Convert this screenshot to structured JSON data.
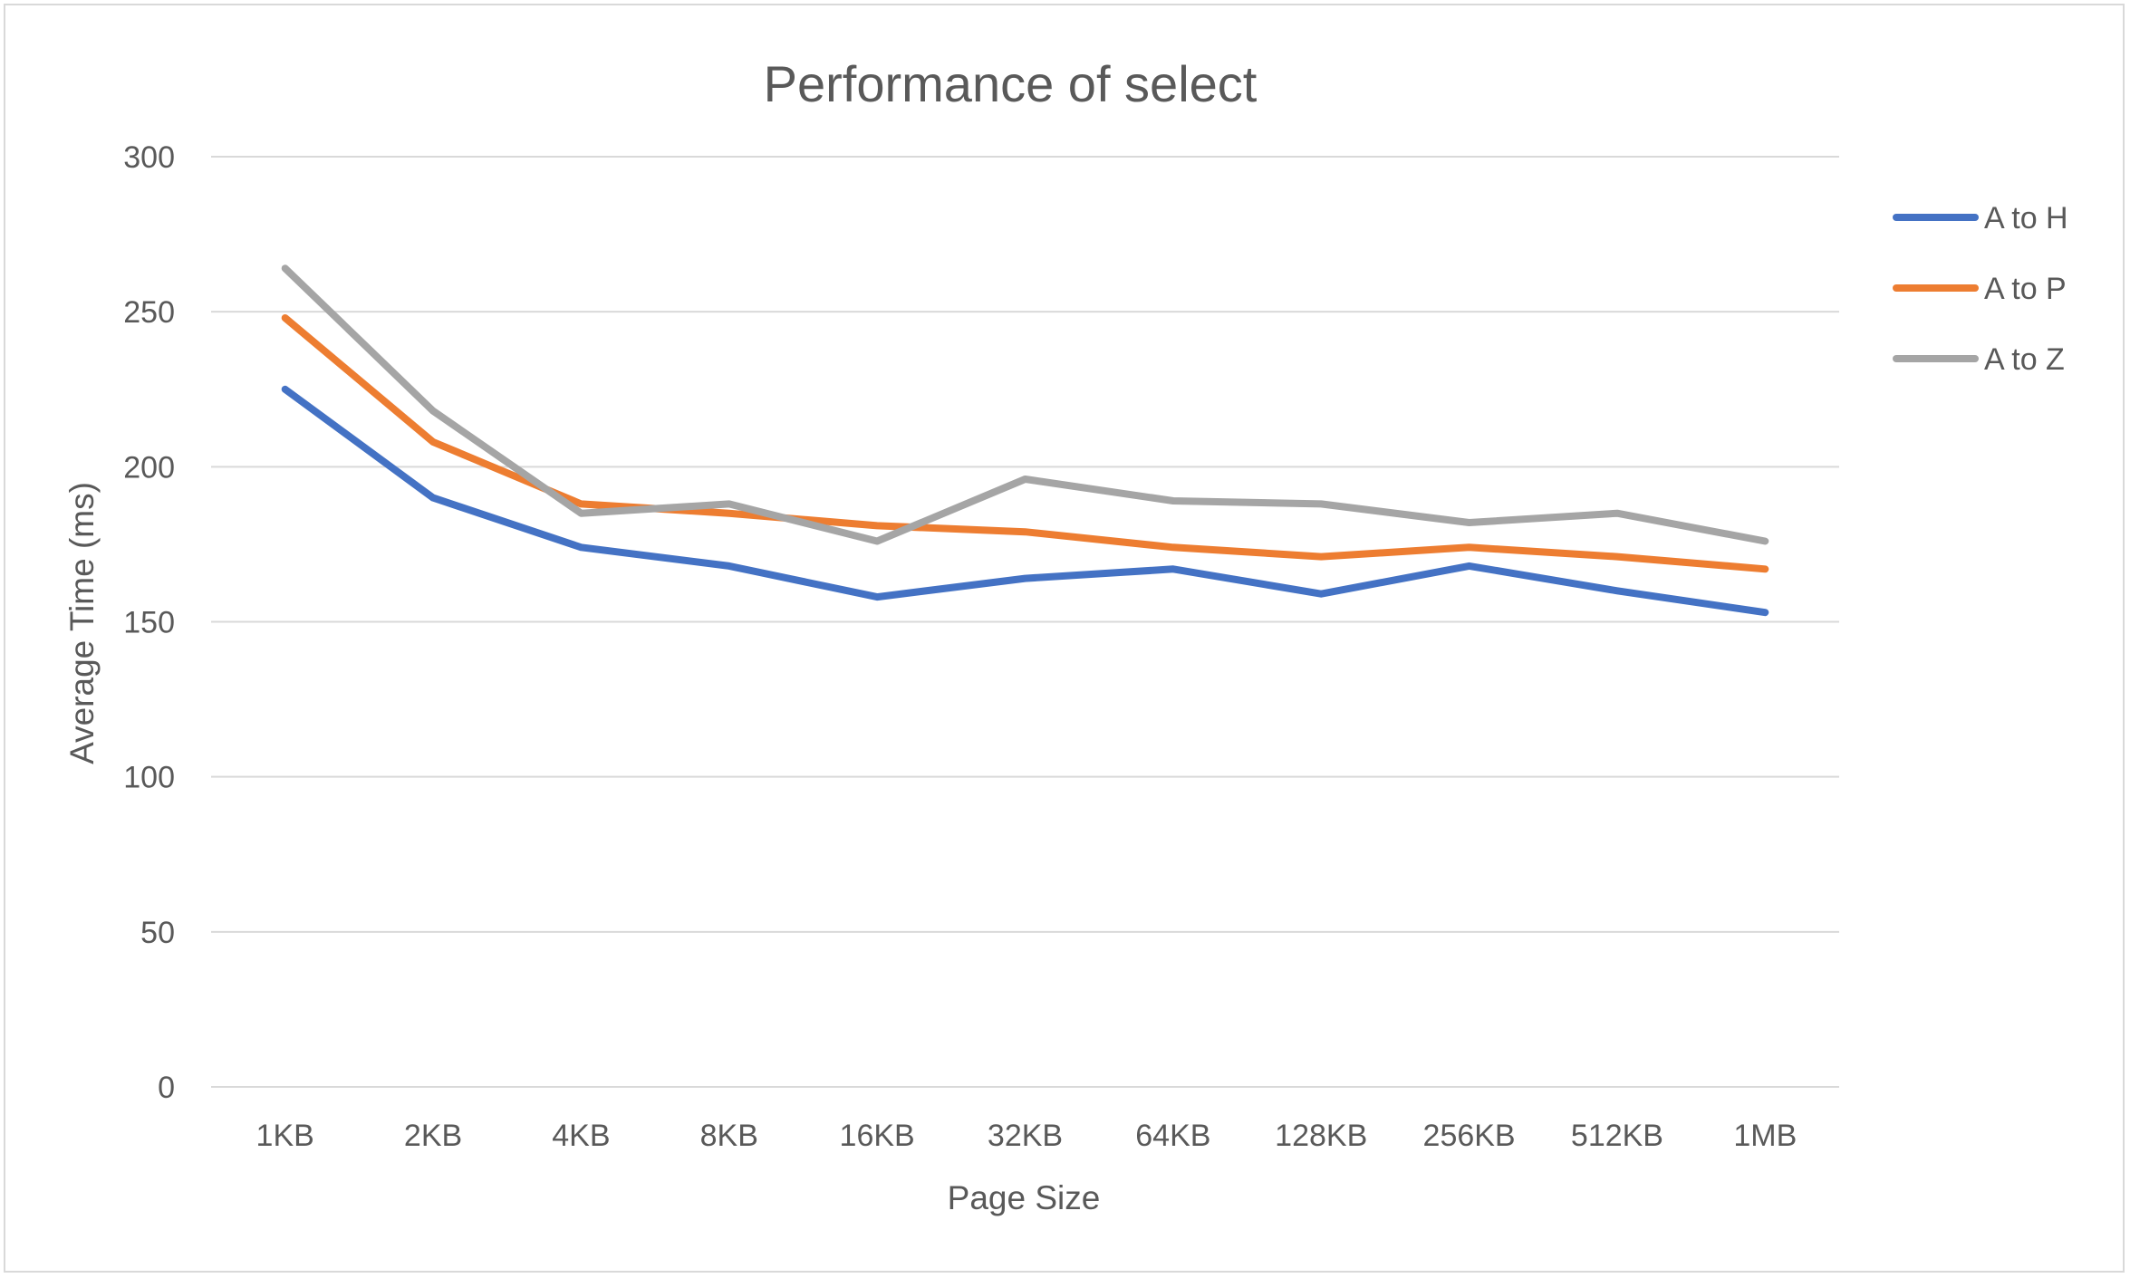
{
  "chart_data": {
    "type": "line",
    "title": "Performance of select",
    "xlabel": "Page Size",
    "ylabel": "Average Time (ms)",
    "categories": [
      "1KB",
      "2KB",
      "4KB",
      "8KB",
      "16KB",
      "32KB",
      "64KB",
      "128KB",
      "256KB",
      "512KB",
      "1MB"
    ],
    "ylim": [
      0,
      300
    ],
    "yticks": [
      0,
      50,
      100,
      150,
      200,
      250,
      300
    ],
    "grid": true,
    "legend_position": "right",
    "series": [
      {
        "name": "A to H",
        "color": "#4472C4",
        "values": [
          225,
          190,
          174,
          168,
          158,
          164,
          167,
          159,
          168,
          160,
          153
        ]
      },
      {
        "name": "A to P",
        "color": "#ED7D31",
        "values": [
          248,
          208,
          188,
          185,
          181,
          179,
          174,
          171,
          174,
          171,
          167
        ]
      },
      {
        "name": "A to Z",
        "color": "#A5A5A5",
        "values": [
          264,
          218,
          185,
          188,
          176,
          196,
          189,
          188,
          182,
          185,
          176
        ]
      }
    ]
  }
}
